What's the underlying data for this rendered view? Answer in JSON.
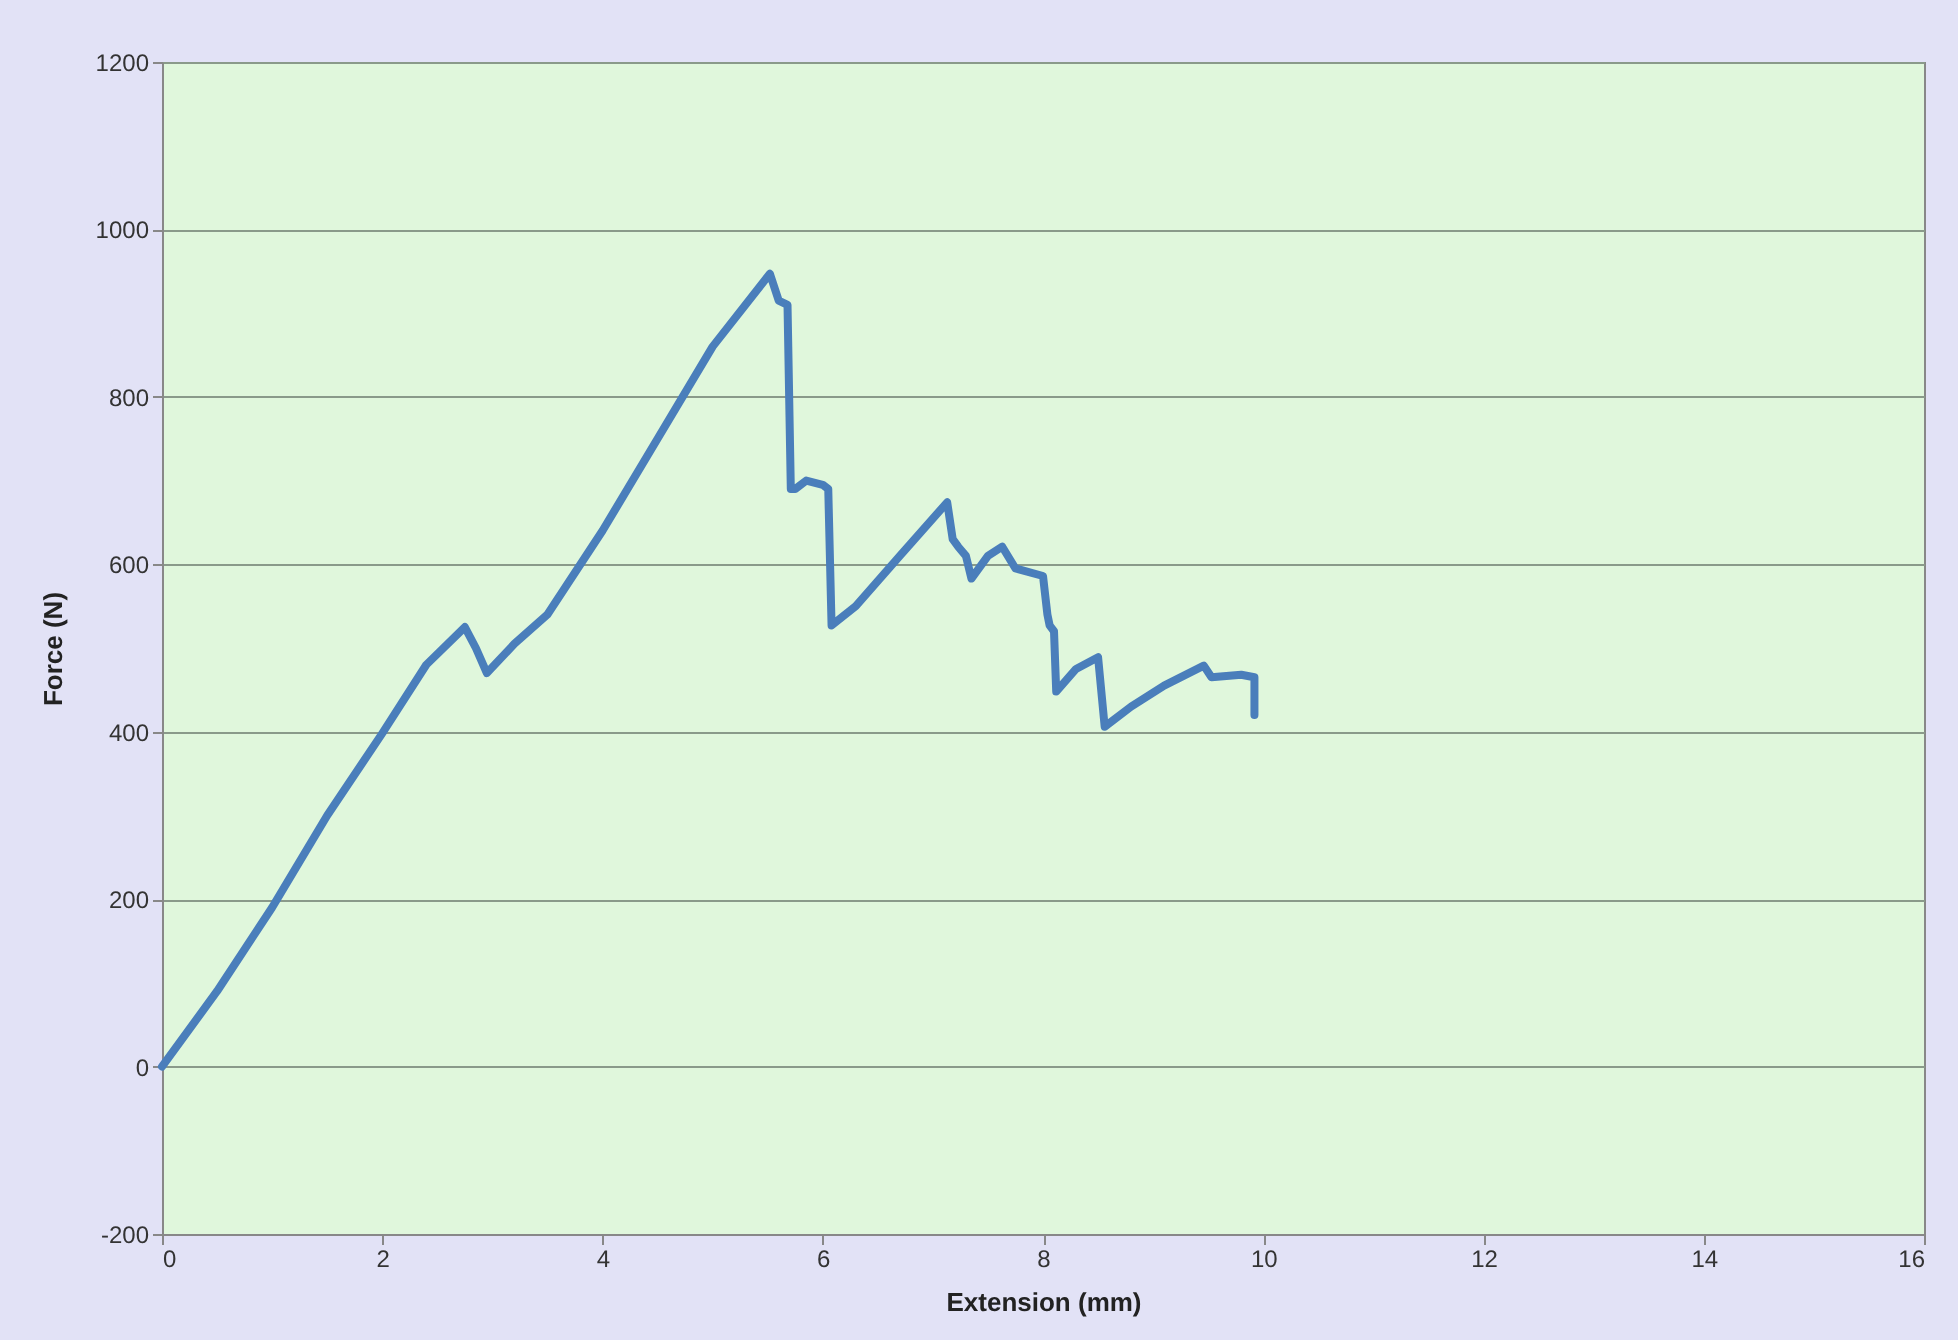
{
  "chart_data": {
    "type": "line",
    "xlabel": "Extension (mm)",
    "ylabel": "Force (N)",
    "x": [
      0,
      0.5,
      1,
      1.5,
      2,
      2.4,
      2.75,
      2.85,
      2.95,
      3.2,
      3.5,
      4,
      4.5,
      5,
      5.52,
      5.6,
      5.68,
      5.71,
      5.75,
      5.85,
      6.0,
      6.05,
      6.08,
      6.3,
      6.7,
      7.13,
      7.18,
      7.23,
      7.3,
      7.35,
      7.5,
      7.63,
      7.75,
      8.0,
      8.04,
      8.06,
      8.1,
      8.12,
      8.3,
      8.5,
      8.56,
      8.8,
      9.1,
      9.46,
      9.53,
      9.8,
      9.92,
      9.92
    ],
    "values": [
      0,
      90,
      190,
      300,
      398,
      480,
      525,
      500,
      470,
      505,
      540,
      640,
      750,
      860,
      947,
      915,
      910,
      690,
      690,
      700,
      695,
      690,
      527,
      550,
      610,
      674,
      630,
      621,
      610,
      583,
      610,
      621,
      595,
      586,
      540,
      527,
      520,
      448,
      475,
      489,
      406,
      430,
      455,
      479,
      465,
      468,
      465,
      420
    ],
    "color": "#4a7ebb",
    "xlim": [
      0,
      16
    ],
    "xticks": [
      0,
      2,
      4,
      6,
      8,
      10,
      12,
      14,
      16
    ],
    "ylim": [
      -200,
      1200
    ],
    "yticks": [
      -200,
      0,
      200,
      400,
      600,
      800,
      1000,
      1200
    ],
    "grid": "y"
  }
}
